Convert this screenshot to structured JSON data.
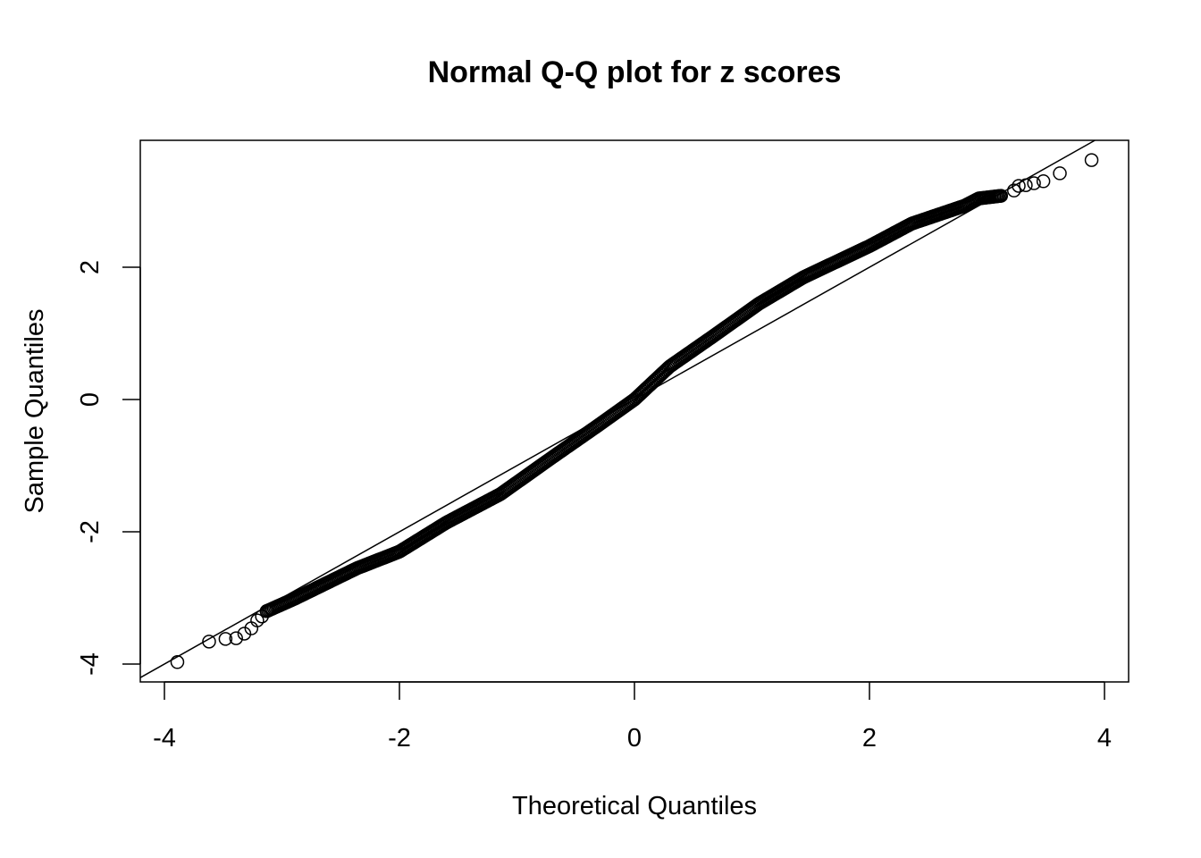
{
  "chart_data": {
    "type": "scatter",
    "title": "Normal Q-Q plot for z scores",
    "xlabel": "Theoretical Quantiles",
    "ylabel": "Sample Quantiles",
    "xlim": [
      -4.2,
      4.2
    ],
    "ylim": [
      -4.2,
      3.95
    ],
    "xticks": [
      -4,
      -2,
      0,
      2,
      4
    ],
    "yticks": [
      -4,
      -2,
      0,
      2
    ],
    "grid": false,
    "marker": "open-circle",
    "color": "#000000",
    "reference_line": {
      "intercept": 0.0,
      "slope": 1.0
    },
    "tail_points": [
      [
        -3.89,
        -3.97
      ],
      [
        -3.62,
        -3.66
      ],
      [
        -3.48,
        -3.62
      ],
      [
        -3.39,
        -3.61
      ],
      [
        -3.32,
        -3.54
      ],
      [
        -3.26,
        -3.46
      ],
      [
        -3.21,
        -3.34
      ],
      [
        -3.17,
        -3.28
      ],
      [
        -3.13,
        -3.2
      ],
      [
        3.12,
        3.08
      ],
      [
        3.23,
        3.16
      ],
      [
        3.27,
        3.23
      ],
      [
        3.33,
        3.24
      ],
      [
        3.4,
        3.27
      ],
      [
        3.48,
        3.3
      ],
      [
        3.62,
        3.42
      ],
      [
        3.89,
        3.62
      ]
    ],
    "dense_band_curve": [
      [
        -3.13,
        -3.2
      ],
      [
        -2.89,
        -3.01
      ],
      [
        -2.36,
        -2.55
      ],
      [
        -2.0,
        -2.3
      ],
      [
        -1.6,
        -1.86
      ],
      [
        -1.14,
        -1.43
      ],
      [
        -0.68,
        -0.85
      ],
      [
        -0.3,
        -0.38
      ],
      [
        0.0,
        0.0
      ],
      [
        0.3,
        0.5
      ],
      [
        0.68,
        0.97
      ],
      [
        1.06,
        1.45
      ],
      [
        1.44,
        1.85
      ],
      [
        2.0,
        2.32
      ],
      [
        2.36,
        2.66
      ],
      [
        2.81,
        2.93
      ],
      [
        2.93,
        3.04
      ],
      [
        3.12,
        3.08
      ]
    ]
  }
}
